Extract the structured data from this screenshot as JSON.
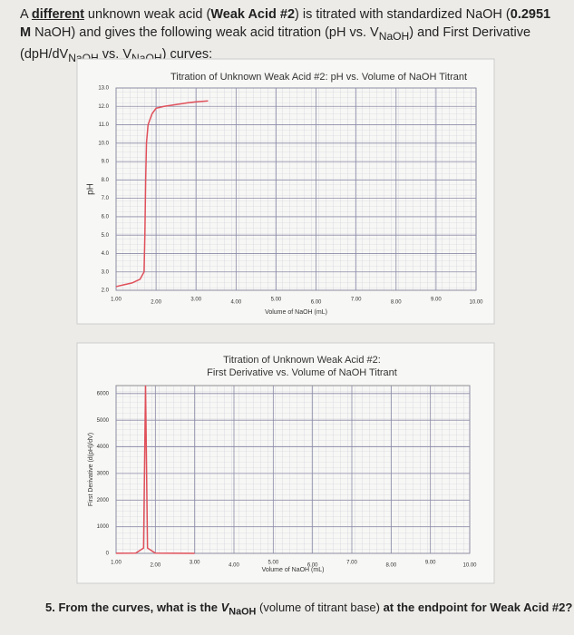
{
  "intro": [
    "A ",
    "different",
    " unknown weak acid (",
    "Weak Acid #2",
    ") is titrated with standardized NaOH (",
    "0.2951 M",
    " NaOH) and gives the following weak acid titration (pH vs. V",
    "NaOH",
    ") and First Derivative (dpH/dV",
    "NaOH",
    " vs. V",
    "NaOH",
    ") curves:"
  ],
  "chart_data": [
    {
      "type": "line",
      "title": "Titration of Unknown Weak Acid #2: pH vs. Volume of NaOH Titrant",
      "x_label": "Volume of NaOH (mL)",
      "y_label": "pH",
      "x": [
        1.0,
        1.2,
        1.4,
        1.6,
        1.7,
        1.72,
        1.74,
        1.76,
        1.8,
        1.9,
        2.0,
        2.2,
        2.5,
        2.8,
        3.0,
        3.3
      ],
      "series": [
        {
          "name": "pH",
          "color": "#e0505a",
          "values": [
            2.2,
            2.3,
            2.4,
            2.6,
            3.0,
            5.0,
            8.0,
            10.0,
            11.0,
            11.6,
            11.9,
            12.0,
            12.1,
            12.2,
            12.25,
            12.3
          ]
        }
      ],
      "xlim": [
        1,
        10
      ],
      "ylim": [
        2,
        13
      ],
      "xticks": [
        {
          "value": 1,
          "label": "1.00"
        },
        {
          "value": 2,
          "label": "2.00"
        },
        {
          "value": 3,
          "label": "3.00"
        },
        {
          "value": 4,
          "label": "4.00"
        },
        {
          "value": 5,
          "label": "5.00"
        },
        {
          "value": 6,
          "label": "6.00"
        },
        {
          "value": 7,
          "label": "7.00"
        },
        {
          "value": 8,
          "label": "8.00"
        },
        {
          "value": 9,
          "label": "9.00"
        },
        {
          "value": 10,
          "label": "10.00"
        }
      ],
      "yticks": [
        {
          "value": 2,
          "label": "2.0"
        },
        {
          "value": 3,
          "label": "3.0"
        },
        {
          "value": 4,
          "label": "4.0"
        },
        {
          "value": 5,
          "label": "5.0"
        },
        {
          "value": 6,
          "label": "6.0"
        },
        {
          "value": 7,
          "label": "7.0"
        },
        {
          "value": 8,
          "label": "8.0"
        },
        {
          "value": 9,
          "label": "9.0"
        },
        {
          "value": 10,
          "label": "10.0"
        },
        {
          "value": 11,
          "label": "11.0"
        },
        {
          "value": 12,
          "label": "12.0"
        },
        {
          "value": 13,
          "label": "13.0"
        }
      ],
      "grid": true
    },
    {
      "type": "line",
      "title": "Titration of Unknown Weak Acid #2:",
      "subtitle": "First Derivative vs. Volume of NaOH Titrant",
      "x_label": "Volume of NaOH (mL)",
      "y_label": "First Derivative (d(pH)/dV)",
      "x": [
        1.0,
        1.5,
        1.7,
        1.75,
        1.8,
        2.0,
        3.0
      ],
      "series": [
        {
          "name": "dpH/dV",
          "color": "#e0505a",
          "values": [
            5,
            10,
            200,
            6300,
            200,
            10,
            2
          ]
        }
      ],
      "xlim": [
        1,
        10
      ],
      "ylim": [
        0,
        6300
      ],
      "xticks": [
        {
          "value": 1,
          "label": "1.00"
        },
        {
          "value": 2,
          "label": "2.00"
        },
        {
          "value": 3,
          "label": "3.00"
        },
        {
          "value": 4,
          "label": "4.00"
        },
        {
          "value": 5,
          "label": "5.00"
        },
        {
          "value": 6,
          "label": "6.00"
        },
        {
          "value": 7,
          "label": "7.00"
        },
        {
          "value": 8,
          "label": "8.00"
        },
        {
          "value": 9,
          "label": "9.00"
        },
        {
          "value": 10,
          "label": "10.00"
        }
      ],
      "yticks": [
        0,
        1000,
        2000,
        3000,
        4000,
        5000,
        6000
      ],
      "grid": true
    }
  ],
  "question": [
    "5. From the curves, what is the ",
    "V",
    "NaOH",
    " (volume of titrant base) ",
    "at the endpoint for Weak Acid #2?"
  ]
}
